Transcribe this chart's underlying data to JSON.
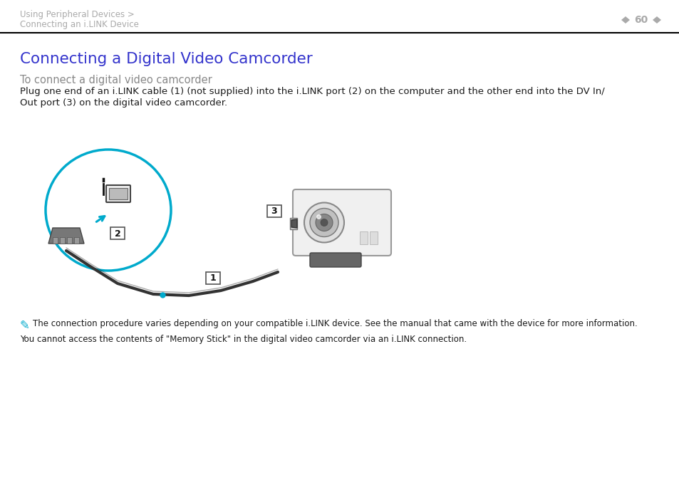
{
  "bg_color": "#ffffff",
  "header_text_line1": "Using Peripheral Devices >",
  "header_text_line2": "Connecting an i.LINK Device",
  "header_page": "60",
  "header_color": "#aaaaaa",
  "header_line_color": "#000000",
  "title": "Connecting a Digital Video Camcorder",
  "title_color": "#3333cc",
  "subtitle": "To connect a digital video camcorder",
  "subtitle_color": "#888888",
  "body_line1": "Plug one end of an i.LINK cable (1) (not supplied) into the i.LINK port (2) on the computer and the other end into the DV In/",
  "body_line2": "Out port (3) on the digital video camcorder.",
  "body_color": "#1a1a1a",
  "note1": "The connection procedure varies depending on your compatible i.LINK device. See the manual that came with the device for more information.",
  "note2": "You cannot access the contents of \"Memory Stick\" in the digital video camcorder via an i.LINK connection.",
  "note_color": "#1a1a1a",
  "cyan": "#00aacc",
  "dark": "#333333",
  "gray": "#888888",
  "lightgray": "#cccccc"
}
